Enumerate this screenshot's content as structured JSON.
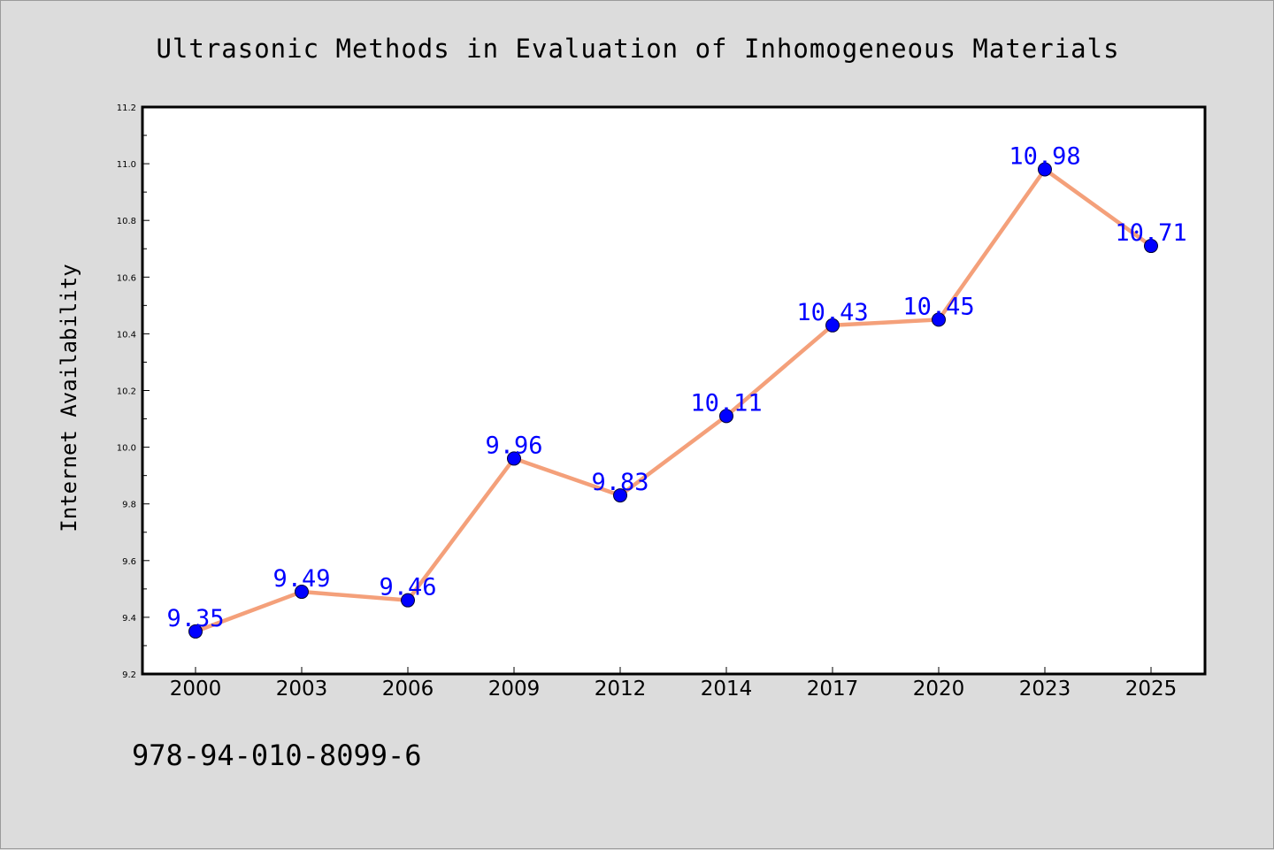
{
  "chart_data": {
    "type": "line",
    "title": "Ultrasonic Methods in Evaluation of Inhomogeneous Materials",
    "xlabel": "",
    "ylabel": "Internet Availability",
    "categories": [
      "2000",
      "2003",
      "2006",
      "2009",
      "2012",
      "2014",
      "2017",
      "2020",
      "2023",
      "2025"
    ],
    "series": [
      {
        "values": [
          9.35,
          9.49,
          9.46,
          9.96,
          9.83,
          10.11,
          10.43,
          10.45,
          10.98,
          10.71
        ]
      }
    ],
    "data_labels": [
      "9.35",
      "9.49",
      "9.46",
      "9.96",
      "9.83",
      "10.11",
      "10.43",
      "10.45",
      "10.98",
      "10.71"
    ],
    "ylim": [
      9.2,
      11.2
    ],
    "y_ticks": [
      "9.2",
      "9.4",
      "9.6",
      "9.8",
      "10.0",
      "10.2",
      "10.4",
      "10.6",
      "10.8",
      "11.0",
      "11.2"
    ],
    "grid": false,
    "legend": "none",
    "colors": {
      "line": "#f4a07a",
      "marker": "#0000ff",
      "label": "#0000ff",
      "plot_background": "#ffffff",
      "figure_background": "#dcdcdc"
    }
  },
  "footer": {
    "isbn": "978-94-010-8099-6"
  }
}
